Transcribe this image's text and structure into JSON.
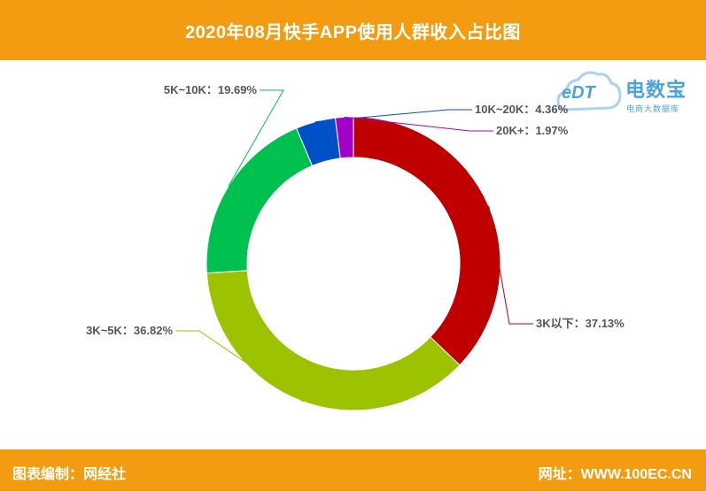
{
  "header": {
    "title": "2020年08月快手APP使用人群收入占比图"
  },
  "footer": {
    "left": "图表编制：网经社",
    "right": "网址：WWW.100EC.CN"
  },
  "logo": {
    "mark_icon": "cloud-edt-icon",
    "mark": "eDT",
    "brand": "电数宝",
    "sub": "电商大数据库"
  },
  "colors": {
    "header": "#f39c12"
  },
  "chart_data": {
    "type": "pie",
    "donut": true,
    "slices": [
      {
        "label": "3K以下",
        "value": 37.13,
        "text": "3K以下：37.13%",
        "color": "#c00000"
      },
      {
        "label": "3K~5K",
        "value": 36.82,
        "text": "3K~5K：36.82%",
        "color": "#9dc300"
      },
      {
        "label": "5K~10K",
        "value": 19.69,
        "text": "5K~10K：19.69%",
        "color": "#00c050"
      },
      {
        "label": "10K~20K",
        "value": 4.36,
        "text": "10K~20K：4.36%",
        "color": "#0050c8"
      },
      {
        "label": "20K+",
        "value": 1.97,
        "text": "20K+：1.97%",
        "color": "#a000c8"
      }
    ]
  }
}
